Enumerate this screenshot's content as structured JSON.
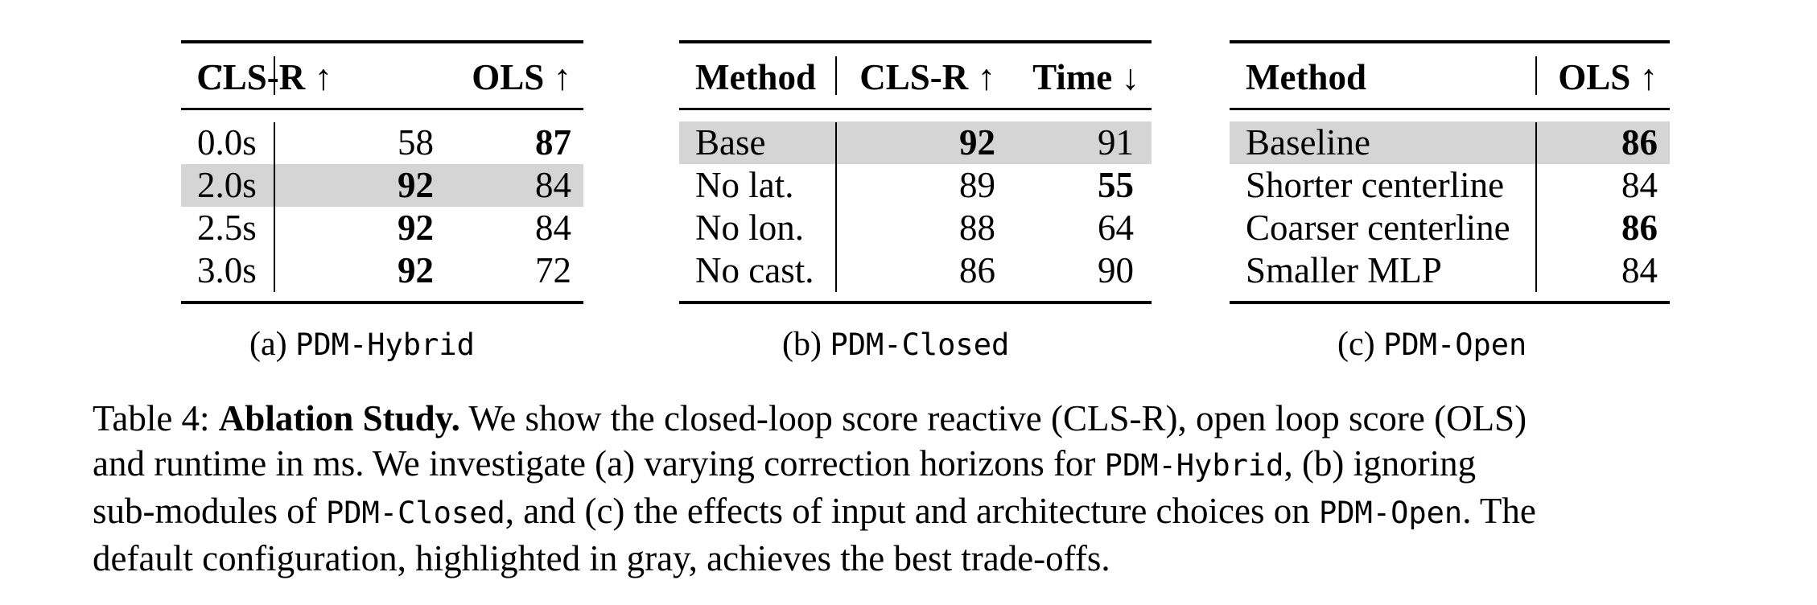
{
  "table_a": {
    "headers": [
      "C",
      "CLS-R ↑",
      "OLS ↑"
    ],
    "rows": [
      {
        "c": "0.0s",
        "clsr": "58",
        "ols": "87"
      },
      {
        "c": "2.0s",
        "clsr": "92",
        "ols": "84"
      },
      {
        "c": "2.5s",
        "clsr": "92",
        "ols": "84"
      },
      {
        "c": "3.0s",
        "clsr": "92",
        "ols": "72"
      }
    ],
    "caption_prefix": "(a)",
    "caption_name": "PDM-Hybrid"
  },
  "table_b": {
    "headers": [
      "Method",
      "CLS-R ↑",
      "Time ↓"
    ],
    "rows": [
      {
        "method": "Base",
        "clsr": "92",
        "time": "91"
      },
      {
        "method": "No lat.",
        "clsr": "89",
        "time": "55"
      },
      {
        "method": "No lon.",
        "clsr": "88",
        "time": "64"
      },
      {
        "method": "No cast.",
        "clsr": "86",
        "time": "90"
      }
    ],
    "caption_prefix": "(b)",
    "caption_name": "PDM-Closed"
  },
  "table_c": {
    "headers": [
      "Method",
      "OLS ↑"
    ],
    "rows": [
      {
        "method": "Baseline",
        "ols": "86"
      },
      {
        "method": "Shorter centerline",
        "ols": "84"
      },
      {
        "method": "Coarser centerline",
        "ols": "86"
      },
      {
        "method": "Smaller MLP",
        "ols": "84"
      }
    ],
    "caption_prefix": "(c)",
    "caption_name": "PDM-Open"
  },
  "caption": {
    "label": "Table 4:",
    "title": "Ablation Study.",
    "l1_text": "We show the closed-loop score reactive (CLS-R), open loop score (OLS)",
    "l2_a": "and runtime in ms.  We investigate (a) varying correction horizons for ",
    "l2_code": "PDM-Hybrid",
    "l2_b": ", (b) ignoring",
    "l3_a": "sub-modules of ",
    "l3_code1": "PDM-Closed",
    "l3_b": ", and (c) the effects of input and architecture choices on ",
    "l3_code2": "PDM-Open",
    "l3_c": ". The",
    "l4": "default configuration, highlighted in gray, achieves the best trade-offs."
  }
}
